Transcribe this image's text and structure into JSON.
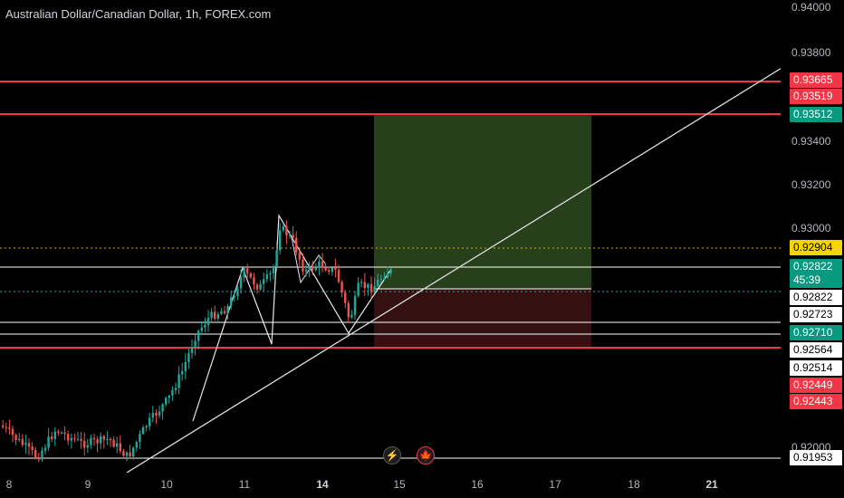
{
  "chart_header": {
    "title": "Australian Dollar/Canadian Dollar, 1h, FOREX.com"
  },
  "colors": {
    "background": "#000000",
    "bull_candle": "#26a69a",
    "bear_candle": "#ef5350",
    "resistance_line": "#f23645",
    "profit_zone": "#2e4a1e",
    "loss_zone": "#3a1212",
    "trendline": "#e0e0e0"
  },
  "price_axis": {
    "ticks": [
      "0.94000",
      "0.93800",
      "0.93400",
      "0.93200",
      "0.93000",
      "0.92000"
    ],
    "labels": [
      {
        "value": "0.93665",
        "style": "red"
      },
      {
        "value": "0.93519",
        "style": "red"
      },
      {
        "value": "0.93512",
        "style": "green"
      },
      {
        "value": "0.92904",
        "style": "yellow"
      },
      {
        "value": "0.92822",
        "style": "green"
      },
      {
        "value": "45:39",
        "style": "green"
      },
      {
        "value": "0.92822",
        "style": "white"
      },
      {
        "value": "0.92723",
        "style": "white"
      },
      {
        "value": "0.92710",
        "style": "green"
      },
      {
        "value": "0.92564",
        "style": "white"
      },
      {
        "value": "0.92514",
        "style": "white"
      },
      {
        "value": "0.92449",
        "style": "red"
      },
      {
        "value": "0.92443",
        "style": "red"
      },
      {
        "value": "0.91953",
        "style": "white"
      }
    ]
  },
  "time_axis": {
    "ticks": [
      {
        "label": "8",
        "bold": false
      },
      {
        "label": "9",
        "bold": false
      },
      {
        "label": "10",
        "bold": false
      },
      {
        "label": "11",
        "bold": false
      },
      {
        "label": "14",
        "bold": true
      },
      {
        "label": "15",
        "bold": false
      },
      {
        "label": "16",
        "bold": false
      },
      {
        "label": "17",
        "bold": false
      },
      {
        "label": "18",
        "bold": false
      },
      {
        "label": "21",
        "bold": true
      }
    ]
  },
  "events": [
    {
      "icon": "lightning-icon",
      "glyph": "⚡"
    },
    {
      "icon": "canada-flag-icon",
      "glyph": "🍁"
    }
  ]
}
